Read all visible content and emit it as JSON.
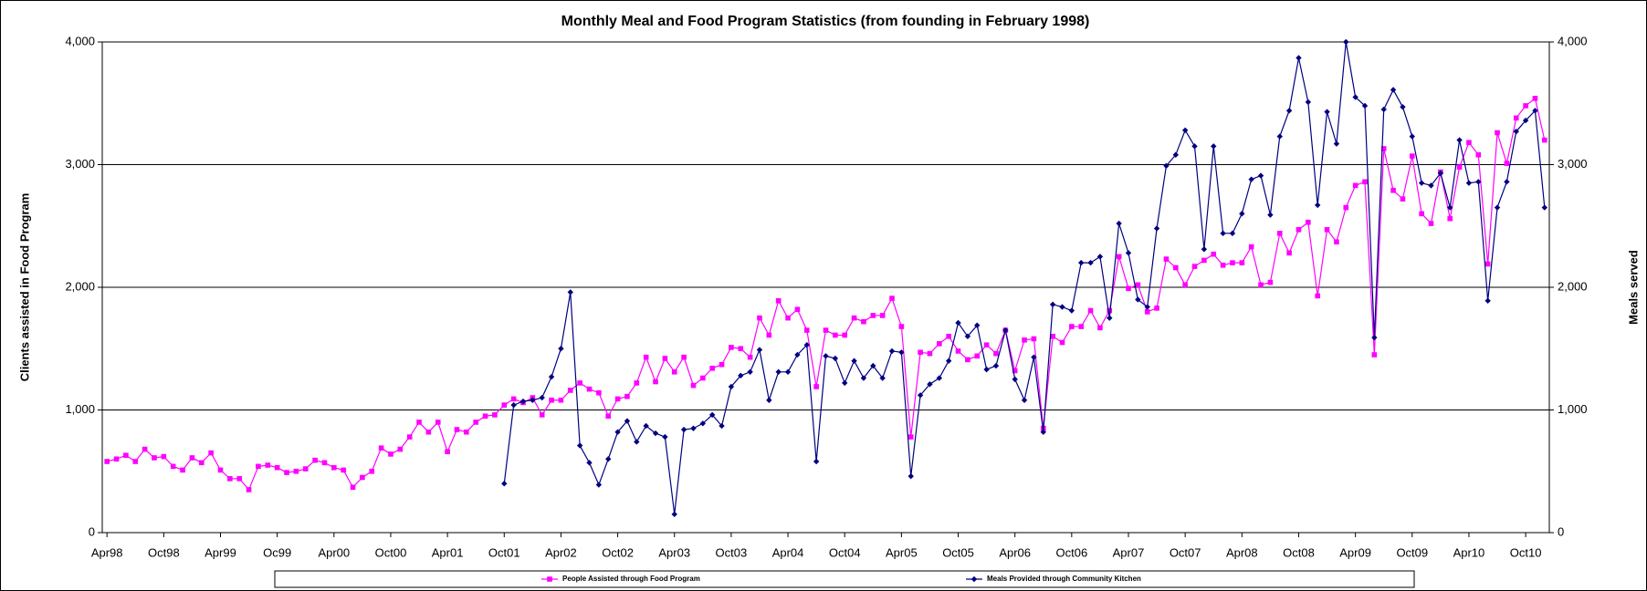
{
  "chart_data": {
    "type": "line",
    "title": "Monthly Meal and Food Program Statistics (from founding in February 1998)",
    "y_label": "Clients assisted in Food Program",
    "y2_label": "Meals served",
    "categories": [
      "Apr98",
      null,
      null,
      null,
      null,
      null,
      "Oct98",
      null,
      null,
      null,
      null,
      null,
      "Apr99",
      null,
      null,
      null,
      null,
      null,
      "Oc99",
      null,
      null,
      null,
      null,
      null,
      "Apr00",
      null,
      null,
      null,
      null,
      null,
      "Oct00",
      null,
      null,
      null,
      null,
      null,
      "Apr01",
      null,
      null,
      null,
      null,
      null,
      "Oct01",
      null,
      null,
      null,
      null,
      null,
      "Apr02",
      null,
      null,
      null,
      null,
      null,
      "Oct02",
      null,
      null,
      null,
      null,
      null,
      "Apr03",
      null,
      null,
      null,
      null,
      null,
      "Oct03",
      null,
      null,
      null,
      null,
      null,
      "Apr04",
      null,
      null,
      null,
      null,
      null,
      "Oct04",
      null,
      null,
      null,
      null,
      null,
      "Apr05",
      null,
      null,
      null,
      null,
      null,
      "Oct05",
      null,
      null,
      null,
      null,
      null,
      "Apr06",
      null,
      null,
      null,
      null,
      null,
      "Oct06",
      null,
      null,
      null,
      null,
      null,
      "Apr07",
      null,
      null,
      null,
      null,
      null,
      "Oct07",
      null,
      null,
      null,
      null,
      null,
      "Apr08",
      null,
      null,
      null,
      null,
      null,
      "Oct08",
      null,
      null,
      null,
      null,
      null,
      "Apr09",
      null,
      null,
      null,
      null,
      null,
      "Oct09",
      null,
      null,
      null,
      null,
      null,
      "Apr10",
      null,
      null,
      null,
      null,
      null,
      "Oct10",
      null,
      null
    ],
    "series": [
      {
        "name": "People Assisted through Food Program",
        "color": "#ff00ff",
        "marker": "square",
        "values": [
          580,
          600,
          630,
          580,
          680,
          610,
          620,
          540,
          510,
          610,
          570,
          650,
          510,
          440,
          440,
          350,
          540,
          550,
          530,
          490,
          500,
          520,
          590,
          570,
          530,
          510,
          370,
          450,
          500,
          690,
          640,
          680,
          780,
          900,
          820,
          900,
          660,
          840,
          820,
          900,
          950,
          960,
          1040,
          1090,
          1060,
          1100,
          960,
          1080,
          1080,
          1160,
          1220,
          1170,
          1140,
          950,
          1090,
          1110,
          1220,
          1430,
          1230,
          1420,
          1310,
          1430,
          1200,
          1260,
          1340,
          1370,
          1510,
          1500,
          1430,
          1750,
          1610,
          1890,
          1750,
          1820,
          1650,
          1190,
          1650,
          1610,
          1610,
          1750,
          1720,
          1770,
          1770,
          1910,
          1680,
          780,
          1470,
          1460,
          1540,
          1600,
          1480,
          1410,
          1440,
          1530,
          1460,
          1650,
          1320,
          1570,
          1580,
          850,
          1600,
          1550,
          1680,
          1680,
          1810,
          1670,
          1810,
          2250,
          1990,
          2020,
          1800,
          1830,
          2230,
          2160,
          2020,
          2170,
          2220,
          2270,
          2180,
          2200,
          2200,
          2330,
          2020,
          2040,
          2440,
          2280,
          2470,
          2530,
          1930,
          2470,
          2370,
          2650,
          2830,
          2860,
          1450,
          3130,
          2790,
          2720,
          3070,
          2600,
          2520,
          2940,
          2560,
          2980,
          3180,
          3080,
          2190,
          3260,
          3010,
          3380,
          3480,
          3540,
          3200
        ]
      },
      {
        "name": "Meals Provided through Community Kitchen",
        "color": "#000080",
        "marker": "diamond",
        "axis": "y2",
        "values": [
          null,
          null,
          null,
          null,
          null,
          null,
          null,
          null,
          null,
          null,
          null,
          null,
          null,
          null,
          null,
          null,
          null,
          null,
          null,
          null,
          null,
          null,
          null,
          null,
          null,
          null,
          null,
          null,
          null,
          null,
          null,
          null,
          null,
          null,
          null,
          null,
          null,
          null,
          null,
          null,
          null,
          null,
          400,
          1040,
          1070,
          1080,
          1100,
          1270,
          1500,
          1960,
          710,
          570,
          390,
          600,
          820,
          910,
          740,
          870,
          810,
          780,
          150,
          840,
          850,
          890,
          960,
          870,
          1190,
          1280,
          1310,
          1490,
          1080,
          1310,
          1310,
          1450,
          1530,
          580,
          1440,
          1420,
          1220,
          1400,
          1260,
          1360,
          1260,
          1480,
          1470,
          460,
          1120,
          1210,
          1260,
          1400,
          1710,
          1600,
          1690,
          1330,
          1360,
          1650,
          1250,
          1080,
          1430,
          820,
          1860,
          1840,
          1810,
          2200,
          2200,
          2250,
          1750,
          2520,
          2280,
          1900,
          1840,
          2480,
          2990,
          3080,
          3280,
          3150,
          2310,
          3150,
          2440,
          2440,
          2600,
          2880,
          2910,
          2590,
          3230,
          3440,
          3870,
          3510,
          2670,
          3430,
          3170,
          4000,
          3550,
          3480,
          1590,
          3450,
          3610,
          3470,
          3230,
          2850,
          2830,
          2930,
          2650,
          3200,
          2850,
          2860,
          1890,
          2650,
          2860,
          3270,
          3360,
          3440,
          2650
        ]
      }
    ],
    "ylim": [
      0,
      4000
    ],
    "yticks": [
      0,
      {
        "value": 1000,
        "label": "1,000"
      },
      {
        "value": 2000,
        "label": "2,000"
      },
      {
        "value": 3000,
        "label": "3,000"
      },
      {
        "value": 4000,
        "label": "4,000"
      }
    ],
    "y2lim": [
      0,
      4000
    ],
    "y2ticks": [
      0,
      {
        "value": 1000,
        "label": "1,000"
      },
      {
        "value": 2000,
        "label": "2,000"
      },
      {
        "value": 3000,
        "label": "3,000"
      },
      {
        "value": 4000,
        "label": "4,000"
      }
    ],
    "grid": true,
    "legend": "bottom"
  }
}
